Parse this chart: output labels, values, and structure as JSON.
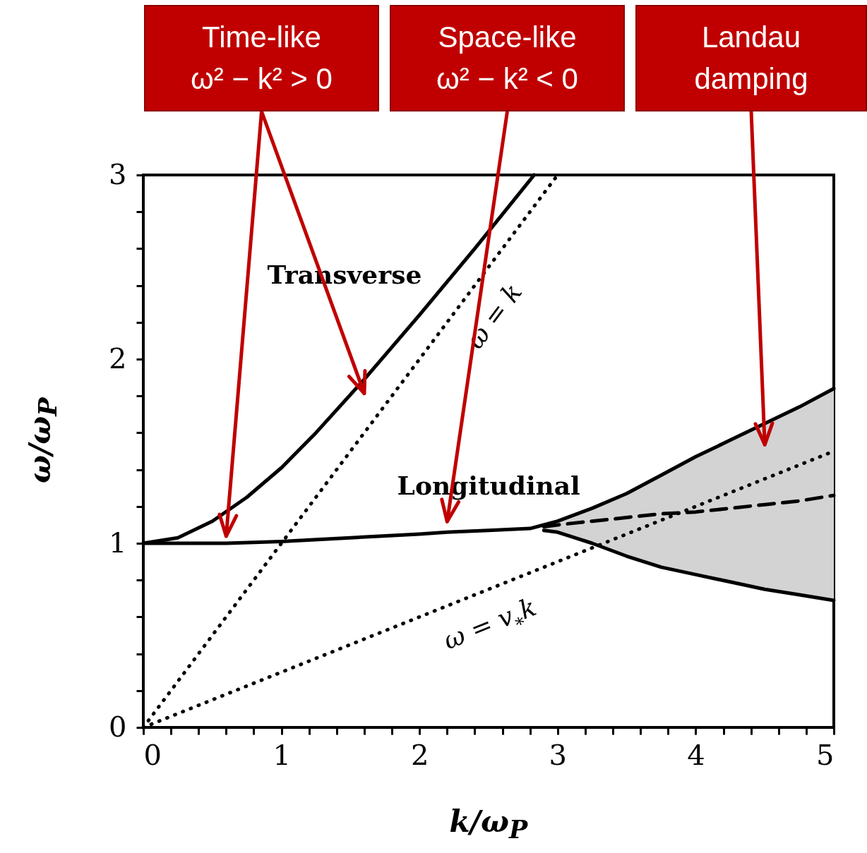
{
  "chart_data": {
    "type": "line",
    "xlabel": "k/ω$_{P}$",
    "ylabel": "ω/ω$_{P}$",
    "xlim": [
      0,
      5
    ],
    "ylim": [
      0,
      3
    ],
    "xticks": [
      0,
      {
        "value": 0.2,
        "label": null
      },
      {
        "value": 0.4,
        "label": null
      },
      {
        "value": 0.6,
        "label": null
      },
      {
        "value": 0.8,
        "label": null
      },
      1,
      {
        "value": 1.2,
        "label": null
      },
      {
        "value": 1.4,
        "label": null
      },
      {
        "value": 1.6,
        "label": null
      },
      {
        "value": 1.8,
        "label": null
      },
      2,
      {
        "value": 2.2,
        "label": null
      },
      {
        "value": 2.4,
        "label": null
      },
      {
        "value": 2.6,
        "label": null
      },
      {
        "value": 2.8,
        "label": null
      },
      3,
      {
        "value": 3.2,
        "label": null
      },
      {
        "value": 3.4,
        "label": null
      },
      {
        "value": 3.6,
        "label": null
      },
      {
        "value": 3.8,
        "label": null
      },
      4,
      {
        "value": 4.2,
        "label": null
      },
      {
        "value": 4.4,
        "label": null
      },
      {
        "value": 4.6,
        "label": null
      },
      {
        "value": 4.8,
        "label": null
      },
      5
    ],
    "yticks": [
      0,
      {
        "value": 0.2,
        "label": null
      },
      {
        "value": 0.4,
        "label": null
      },
      {
        "value": 0.6,
        "label": null
      },
      {
        "value": 0.8,
        "label": null
      },
      1,
      {
        "value": 1.2,
        "label": null
      },
      {
        "value": 1.4,
        "label": null
      },
      {
        "value": 1.6,
        "label": null
      },
      {
        "value": 1.8,
        "label": null
      },
      2,
      {
        "value": 2.2,
        "label": null
      },
      {
        "value": 2.4,
        "label": null
      },
      {
        "value": 2.6,
        "label": null
      },
      {
        "value": 2.8,
        "label": null
      },
      3
    ],
    "grid": false,
    "marker": "none",
    "series": [
      {
        "name": "Transverse",
        "type": "line",
        "color": "#000000",
        "x": [
          0,
          0.25,
          0.5,
          0.75,
          1,
          1.25,
          1.6,
          2,
          2.4,
          2.83
        ],
        "values": [
          1,
          1.03,
          1.12,
          1.25,
          1.41,
          1.6,
          1.89,
          2.24,
          2.6,
          3.0
        ]
      },
      {
        "name": "Longitudinal",
        "type": "line",
        "color": "#000000",
        "x": [
          0,
          0.3,
          0.6,
          1,
          1.5,
          2,
          2.2,
          2.5,
          2.8,
          3,
          3.25,
          3.5,
          3.75,
          4,
          4.25,
          4.5,
          4.75,
          5
        ],
        "values": [
          1,
          1.0,
          1.0,
          1.01,
          1.03,
          1.05,
          1.06,
          1.07,
          1.08,
          1.12,
          1.19,
          1.27,
          1.37,
          1.47,
          1.56,
          1.65,
          1.74,
          1.84
        ]
      },
      {
        "type": "line",
        "color": "#000000",
        "x": [
          2.9,
          3,
          3.25,
          3.5,
          3.75,
          4,
          4.25,
          4.5,
          4.75,
          5
        ],
        "values": [
          1.07,
          1.06,
          1.0,
          0.93,
          0.87,
          0.83,
          0.79,
          0.75,
          0.72,
          0.69
        ]
      },
      {
        "type": "line",
        "color": "#000000",
        "line_style": "dashed",
        "x": [
          2.9,
          3,
          3.25,
          3.5,
          3.75,
          4,
          4.25,
          4.5,
          4.75,
          5
        ],
        "values": [
          1.09,
          1.1,
          1.12,
          1.14,
          1.16,
          1.17,
          1.19,
          1.21,
          1.23,
          1.26
        ],
        "lower": [
          1.07,
          1.06,
          1.0,
          0.93,
          0.87,
          0.83,
          0.79,
          0.75,
          0.72,
          0.69
        ],
        "upper": [
          1.1,
          1.12,
          1.19,
          1.27,
          1.37,
          1.47,
          1.56,
          1.65,
          1.74,
          1.84
        ]
      },
      {
        "name": "ω = k",
        "type": "line",
        "color": "#000000",
        "line_style": "dotted",
        "x": [
          0,
          3
        ],
        "values": [
          0,
          3
        ]
      },
      {
        "name": "ω = v$_{*}$k",
        "type": "line",
        "color": "#000000",
        "line_style": "dotted",
        "x": [
          0,
          5
        ],
        "values": [
          0,
          1.5
        ]
      }
    ],
    "annotations": [
      "Time-like\nω² − k² > 0",
      "Space-like\nω² − k² < 0",
      "Landau\ndamping"
    ]
  }
}
